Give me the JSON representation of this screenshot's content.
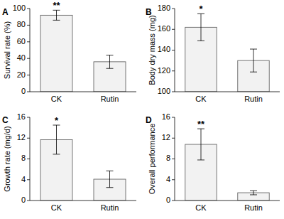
{
  "chart_data": [
    {
      "type": "bar",
      "title": "A",
      "y_label": "Survival rate (%)",
      "categories": [
        "CK",
        "Rutin"
      ],
      "values": [
        92,
        36
      ],
      "errors": [
        6,
        8
      ],
      "color": "#f2f2f2",
      "ylim": [
        0,
        100
      ],
      "yticks": [
        0,
        20,
        40,
        60,
        80,
        100
      ],
      "annotations": [
        {
          "text": "**",
          "category": "CK"
        }
      ]
    },
    {
      "type": "bar",
      "title": "B",
      "y_label": "Body dry mass (mg)",
      "categories": [
        "CK",
        "Rutin"
      ],
      "values": [
        162,
        130
      ],
      "errors": [
        13,
        11
      ],
      "color": "#f2f2f2",
      "ylim": [
        100,
        180
      ],
      "yticks": [
        100,
        120,
        140,
        160,
        180
      ],
      "annotations": [
        {
          "text": "*",
          "category": "CK"
        }
      ]
    },
    {
      "type": "bar",
      "title": "C",
      "y_label": "Growth rate (mg/d)",
      "categories": [
        "CK",
        "Rutin"
      ],
      "values": [
        11.7,
        4.1
      ],
      "errors": [
        2.8,
        1.6
      ],
      "color": "#f2f2f2",
      "ylim": [
        0,
        16
      ],
      "yticks": [
        0,
        4,
        8,
        12,
        16
      ],
      "annotations": [
        {
          "text": "*",
          "category": "CK"
        }
      ]
    },
    {
      "type": "bar",
      "title": "D",
      "y_label": "Overall performance",
      "categories": [
        "CK",
        "Rutin"
      ],
      "values": [
        10.8,
        1.5
      ],
      "errors": [
        3,
        0.4
      ],
      "color": "#f2f2f2",
      "ylim": [
        0,
        16
      ],
      "yticks": [
        0,
        4,
        8,
        12,
        16
      ],
      "annotations": [
        {
          "text": "**",
          "category": "CK"
        }
      ]
    }
  ]
}
